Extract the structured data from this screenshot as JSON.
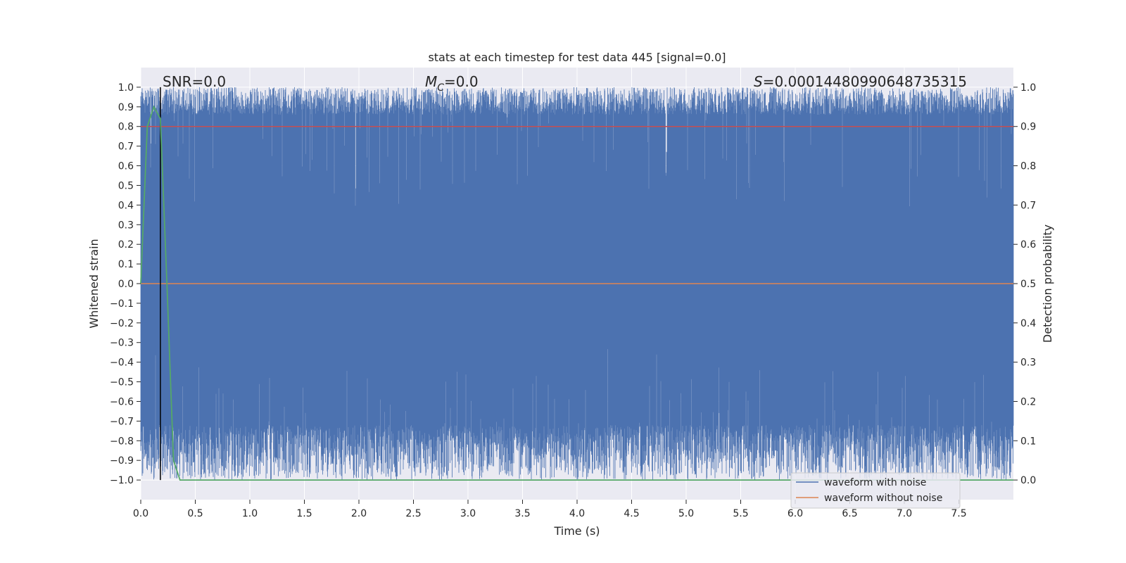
{
  "chart_data": {
    "type": "line",
    "title": "stats at each timestep for test data 445 [signal=0.0]",
    "xlabel": "Time (s)",
    "ylabel_left": "Whitened strain",
    "ylabel_right": "Detection probability",
    "xlim": [
      0.0,
      8.0
    ],
    "ylim_left": [
      -1.1,
      1.1
    ],
    "ylim_right": [
      -0.05,
      1.05
    ],
    "grid": true,
    "x_ticks": [
      "0.0",
      "0.5",
      "1.0",
      "1.5",
      "2.0",
      "2.5",
      "3.0",
      "3.5",
      "4.0",
      "4.5",
      "5.0",
      "5.5",
      "6.0",
      "6.5",
      "7.0",
      "7.5"
    ],
    "x_tick_values": [
      0.0,
      0.5,
      1.0,
      1.5,
      2.0,
      2.5,
      3.0,
      3.5,
      4.0,
      4.5,
      5.0,
      5.5,
      6.0,
      6.5,
      7.0,
      7.5
    ],
    "y_ticks_left": [
      "1.0",
      "0.9",
      "0.8",
      "0.7",
      "0.6",
      "0.5",
      "0.4",
      "0.3",
      "0.2",
      "0.1",
      "0.0",
      "−0.1",
      "−0.2",
      "−0.3",
      "−0.4",
      "−0.5",
      "−0.6",
      "−0.7",
      "−0.8",
      "−0.9",
      "−1.0"
    ],
    "y_tick_values_left": [
      1.0,
      0.9,
      0.8,
      0.7,
      0.6,
      0.5,
      0.4,
      0.3,
      0.2,
      0.1,
      0.0,
      -0.1,
      -0.2,
      -0.3,
      -0.4,
      -0.5,
      -0.6,
      -0.7,
      -0.8,
      -0.9,
      -1.0
    ],
    "y_ticks_right": [
      "1.0",
      "0.9",
      "0.8",
      "0.7",
      "0.6",
      "0.5",
      "0.4",
      "0.3",
      "0.2",
      "0.1",
      "0.0"
    ],
    "y_tick_values_right": [
      1.0,
      0.9,
      0.8,
      0.7,
      0.6,
      0.5,
      0.4,
      0.3,
      0.2,
      0.1,
      0.0
    ],
    "annotations": {
      "snr": "SNR=0.0",
      "mc_symbol": "M",
      "mc_sub": "C",
      "mc_value": "=0.0",
      "s_symbol": "S",
      "s_value": "=0.00014480990648735315"
    },
    "series": [
      {
        "name": "waveform with noise",
        "color": "#4c72b0",
        "axis": "left",
        "description_values": "dense whitened noise filling roughly -1.0 to 1.0 across 0–8 s",
        "amplitude_range": [
          -1.0,
          1.0
        ],
        "x_range": [
          0.0,
          8.0
        ]
      },
      {
        "name": "waveform without noise",
        "color": "#dd8452",
        "axis": "left",
        "x": [
          0.0,
          8.0
        ],
        "y": [
          0.0,
          0.0
        ]
      },
      {
        "name": "detection probability",
        "color": "#55a868",
        "axis": "right",
        "x": [
          0.0,
          0.06,
          0.12,
          0.18,
          0.24,
          0.3,
          0.36,
          8.0
        ],
        "y": [
          0.5,
          0.9,
          0.95,
          0.92,
          0.5,
          0.05,
          0.0,
          0.0
        ]
      }
    ],
    "threshold": {
      "axis": "right",
      "value": 0.9,
      "color": "#c44e52"
    },
    "marker_line": {
      "x": 0.18,
      "color": "#000000"
    },
    "legend": {
      "position": "lower-right",
      "entries": [
        "waveform with noise",
        "waveform without noise"
      ]
    }
  }
}
